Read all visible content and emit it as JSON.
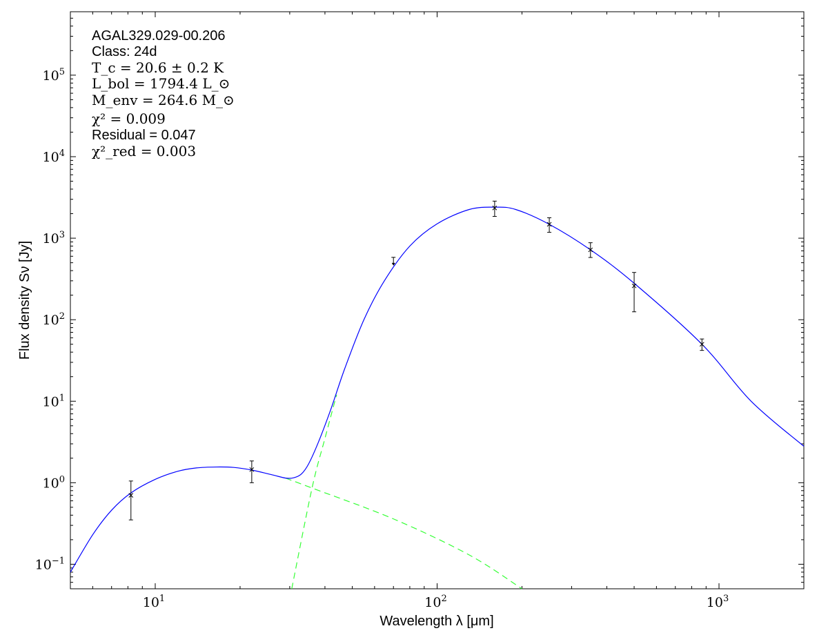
{
  "chart_data": {
    "type": "line",
    "xlabel": "Wavelength λ [μm]",
    "ylabel": "Flux density Sν [Jy]",
    "x_scale": "log",
    "y_scale": "log",
    "xlim": [
      5,
      2000
    ],
    "ylim": [
      0.05,
      600000
    ],
    "x_ticks": [
      {
        "value": 10,
        "base": "10",
        "exp": "1"
      },
      {
        "value": 100,
        "base": "10",
        "exp": "2"
      },
      {
        "value": 1000,
        "base": "10",
        "exp": "3"
      }
    ],
    "y_ticks": [
      {
        "value": 0.1,
        "base": "10",
        "exp": "−1"
      },
      {
        "value": 1,
        "base": "10",
        "exp": "0"
      },
      {
        "value": 10,
        "base": "10",
        "exp": "1"
      },
      {
        "value": 100,
        "base": "10",
        "exp": "2"
      },
      {
        "value": 1000,
        "base": "10",
        "exp": "3"
      },
      {
        "value": 10000,
        "base": "10",
        "exp": "4"
      },
      {
        "value": 100000,
        "base": "10",
        "exp": "5"
      }
    ],
    "grid": false,
    "series": [
      {
        "style": "solid",
        "color": "#0000ff",
        "points": [
          [
            5,
            0.08
          ],
          [
            6,
            0.23
          ],
          [
            7,
            0.46
          ],
          [
            8.2,
            0.75
          ],
          [
            10,
            1.1
          ],
          [
            12,
            1.38
          ],
          [
            14,
            1.52
          ],
          [
            16.5,
            1.56
          ],
          [
            19,
            1.54
          ],
          [
            22,
            1.43
          ],
          [
            26,
            1.25
          ],
          [
            29,
            1.14
          ],
          [
            31,
            1.15
          ],
          [
            33,
            1.28
          ],
          [
            35,
            1.7
          ],
          [
            38,
            3.2
          ],
          [
            42,
            8
          ],
          [
            47,
            25
          ],
          [
            55,
            100
          ],
          [
            65,
            300
          ],
          [
            80,
            800
          ],
          [
            100,
            1500
          ],
          [
            130,
            2250
          ],
          [
            160,
            2400
          ],
          [
            190,
            2250
          ],
          [
            250,
            1480
          ],
          [
            350,
            720
          ],
          [
            500,
            280
          ],
          [
            870,
            50
          ],
          [
            1300,
            10
          ],
          [
            2000,
            2.8
          ]
        ]
      },
      {
        "style": "dashed",
        "color": "#33ff33",
        "points": [
          [
            29,
            1.14
          ],
          [
            36,
            0.86
          ],
          [
            70,
            0.36
          ],
          [
            130,
            0.13
          ],
          [
            200,
            0.05
          ]
        ]
      },
      {
        "style": "dashed",
        "color": "#33ff33",
        "points": [
          [
            30.5,
            0.05
          ],
          [
            36,
            0.86
          ],
          [
            40,
            3.5
          ],
          [
            44,
            12
          ]
        ]
      }
    ],
    "data_points": [
      {
        "x": 8.2,
        "y": 0.7,
        "err_low": 0.35,
        "err_high": 1.05
      },
      {
        "x": 22,
        "y": 1.45,
        "err_low": 1.0,
        "err_high": 1.85
      },
      {
        "x": 160,
        "y": 2350,
        "err_low": 1850,
        "err_high": 2850
      },
      {
        "x": 250,
        "y": 1480,
        "err_low": 1180,
        "err_high": 1780
      },
      {
        "x": 350,
        "y": 720,
        "err_low": 580,
        "err_high": 880
      },
      {
        "x": 500,
        "y": 260,
        "err_low": 125,
        "err_high": 380
      },
      {
        "x": 870,
        "y": 50,
        "err_low": 42,
        "err_high": 58
      }
    ],
    "upper_limits": [
      {
        "x": 70,
        "y": 560
      }
    ]
  },
  "annotations": {
    "source": "AGAL329.029-00.206",
    "class": "Class: 24d",
    "tc": "T_c = 20.6 ± 0.2 K",
    "lbol": "L_bol = 1794.4 L_⊙",
    "menv": "M_env = 264.6 M_⊙",
    "chi2": "χ² = 0.009",
    "residual": "Residual = 0.047",
    "chi2red": "χ²_red = 0.003"
  }
}
